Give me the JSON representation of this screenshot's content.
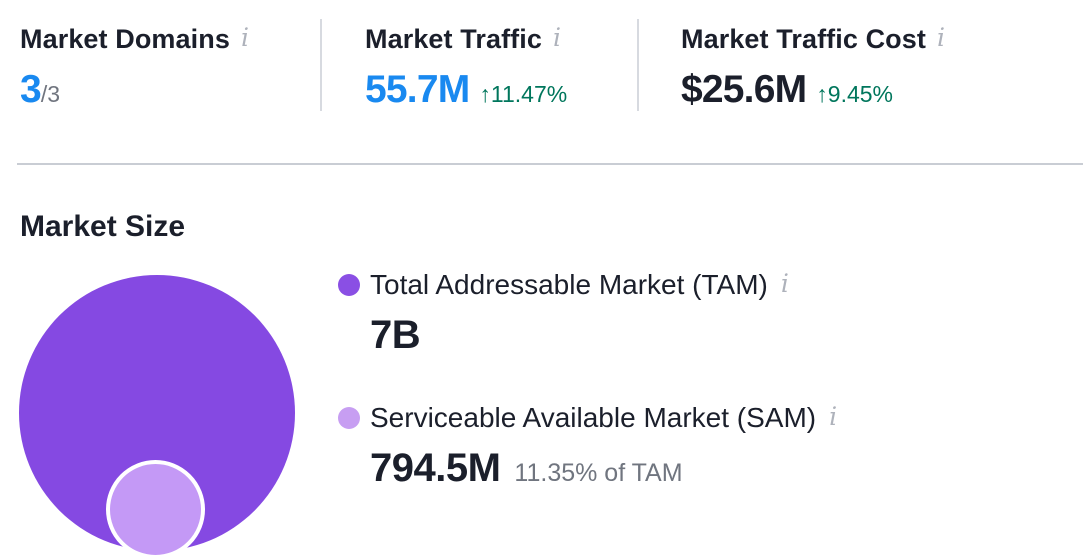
{
  "stats": {
    "domains": {
      "label": "Market Domains",
      "value": "3",
      "suffix": "/3"
    },
    "traffic": {
      "label": "Market Traffic",
      "value": "55.7M",
      "trend": "↑11.47%"
    },
    "cost": {
      "label": "Market Traffic Cost",
      "value": "$25.6M",
      "trend": "↑9.45%"
    }
  },
  "market_size": {
    "title": "Market Size",
    "tam": {
      "label": "Total Addressable Market (TAM)",
      "value": "7B"
    },
    "sam": {
      "label": "Serviceable Available Market (SAM)",
      "value": "794.5M",
      "note": "11.35% of TAM"
    }
  },
  "icons": {
    "info": "i"
  },
  "colors": {
    "blue": "#1989F0",
    "green": "#00765C",
    "text-dark": "#1B1F2B",
    "text-gray": "#70757F",
    "icon-gray": "#AEB2BB",
    "divider": "#C9CDD4",
    "divider-v": "#D7DAE0",
    "tam-bubble": "#8549E2",
    "sam-bubble": "#C499F6",
    "tam-dot": "#8A4FE4",
    "sam-dot": "#C79EF2"
  },
  "chart_data": {
    "type": "bubble",
    "title": "Market Size",
    "layout": "nested-circles, SAM inside TAM at bottom center",
    "series": [
      {
        "name": "Total Addressable Market (TAM)",
        "value_label": "7B",
        "value": 7000000000
      },
      {
        "name": "Serviceable Available Market (SAM)",
        "value_label": "794.5M",
        "value": 794500000,
        "percent_of_tam": "11.35%"
      }
    ]
  }
}
